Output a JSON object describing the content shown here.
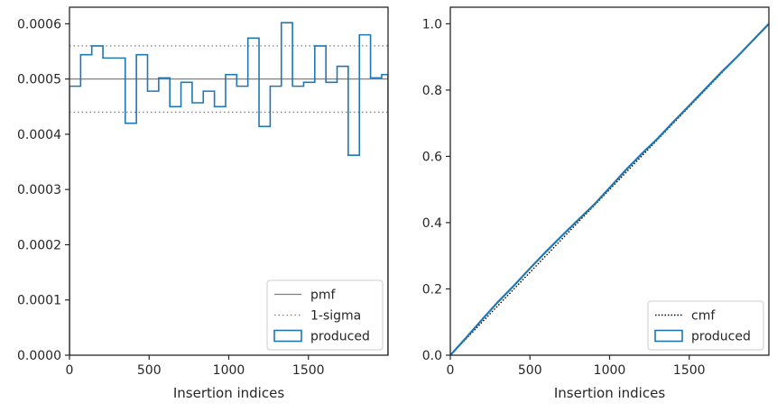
{
  "chart_data": [
    {
      "type": "step",
      "xlabel": "Insertion indices",
      "ylabel": "",
      "xlim": [
        0,
        2000
      ],
      "ylim": [
        0,
        0.00063
      ],
      "xticks": [
        0,
        500,
        1000,
        1500
      ],
      "xtick_labels": [
        "0",
        "500",
        "1000",
        "1500"
      ],
      "yticks": [
        0,
        0.0001,
        0.0002,
        0.0003,
        0.0004,
        0.0005,
        0.0006
      ],
      "ytick_labels": [
        "0.0000",
        "0.0001",
        "0.0002",
        "0.0003",
        "0.0004",
        "0.0005",
        "0.0006"
      ],
      "grid": false,
      "legend_position": "lower-right",
      "legend": [
        "pmf",
        "1-sigma",
        "produced"
      ],
      "reference_lines": [
        {
          "name": "pmf",
          "y": 0.0005,
          "style": "solid",
          "color": "#808080"
        },
        {
          "name": "1-sigma",
          "y": 0.00056,
          "style": "dotted",
          "color": "#808080"
        },
        {
          "name": "1-sigma",
          "y": 0.00044,
          "style": "dotted",
          "color": "#808080"
        }
      ],
      "series": [
        {
          "name": "produced",
          "color": "#1f77b4",
          "bin_edges": [
            0,
            70,
            140,
            210,
            280,
            350,
            420,
            490,
            560,
            630,
            700,
            770,
            840,
            910,
            980,
            1050,
            1120,
            1190,
            1260,
            1330,
            1400,
            1470,
            1540,
            1610,
            1680,
            1750,
            1820,
            1890,
            1960,
            2000
          ],
          "values": [
            0.000487,
            0.000544,
            0.00056,
            0.000538,
            0.000538,
            0.00042,
            0.000544,
            0.000478,
            0.000502,
            0.00045,
            0.000494,
            0.000457,
            0.000478,
            0.00045,
            0.000508,
            0.000487,
            0.000574,
            0.000414,
            0.000487,
            0.000602,
            0.000487,
            0.000494,
            0.00056,
            0.000494,
            0.000523,
            0.000362,
            0.00058,
            0.000502,
            0.000508
          ]
        }
      ]
    },
    {
      "type": "line",
      "xlabel": "Insertion indices",
      "ylabel": "",
      "xlim": [
        0,
        2000
      ],
      "ylim": [
        0,
        1.05
      ],
      "xticks": [
        0,
        500,
        1000,
        1500
      ],
      "xtick_labels": [
        "0",
        "500",
        "1000",
        "1500"
      ],
      "yticks": [
        0,
        0.2,
        0.4,
        0.6,
        0.8,
        1.0
      ],
      "ytick_labels": [
        "0.0",
        "0.2",
        "0.4",
        "0.6",
        "0.8",
        "1.0"
      ],
      "grid": false,
      "legend_position": "lower-right",
      "legend": [
        "cmf",
        "produced"
      ],
      "series": [
        {
          "name": "cmf",
          "style": "dotted",
          "color": "#000000",
          "x": [
            0,
            2000
          ],
          "y": [
            0,
            1.0
          ]
        },
        {
          "name": "produced",
          "color": "#1f77b4",
          "x": [
            0,
            100,
            200,
            300,
            400,
            500,
            600,
            700,
            800,
            900,
            1000,
            1100,
            1200,
            1300,
            1400,
            1500,
            1600,
            1700,
            1800,
            1900,
            2000
          ],
          "y": [
            0,
            0.053,
            0.108,
            0.161,
            0.21,
            0.262,
            0.312,
            0.36,
            0.407,
            0.453,
            0.505,
            0.558,
            0.607,
            0.653,
            0.704,
            0.753,
            0.803,
            0.853,
            0.9,
            0.95,
            1.0
          ]
        }
      ]
    }
  ]
}
